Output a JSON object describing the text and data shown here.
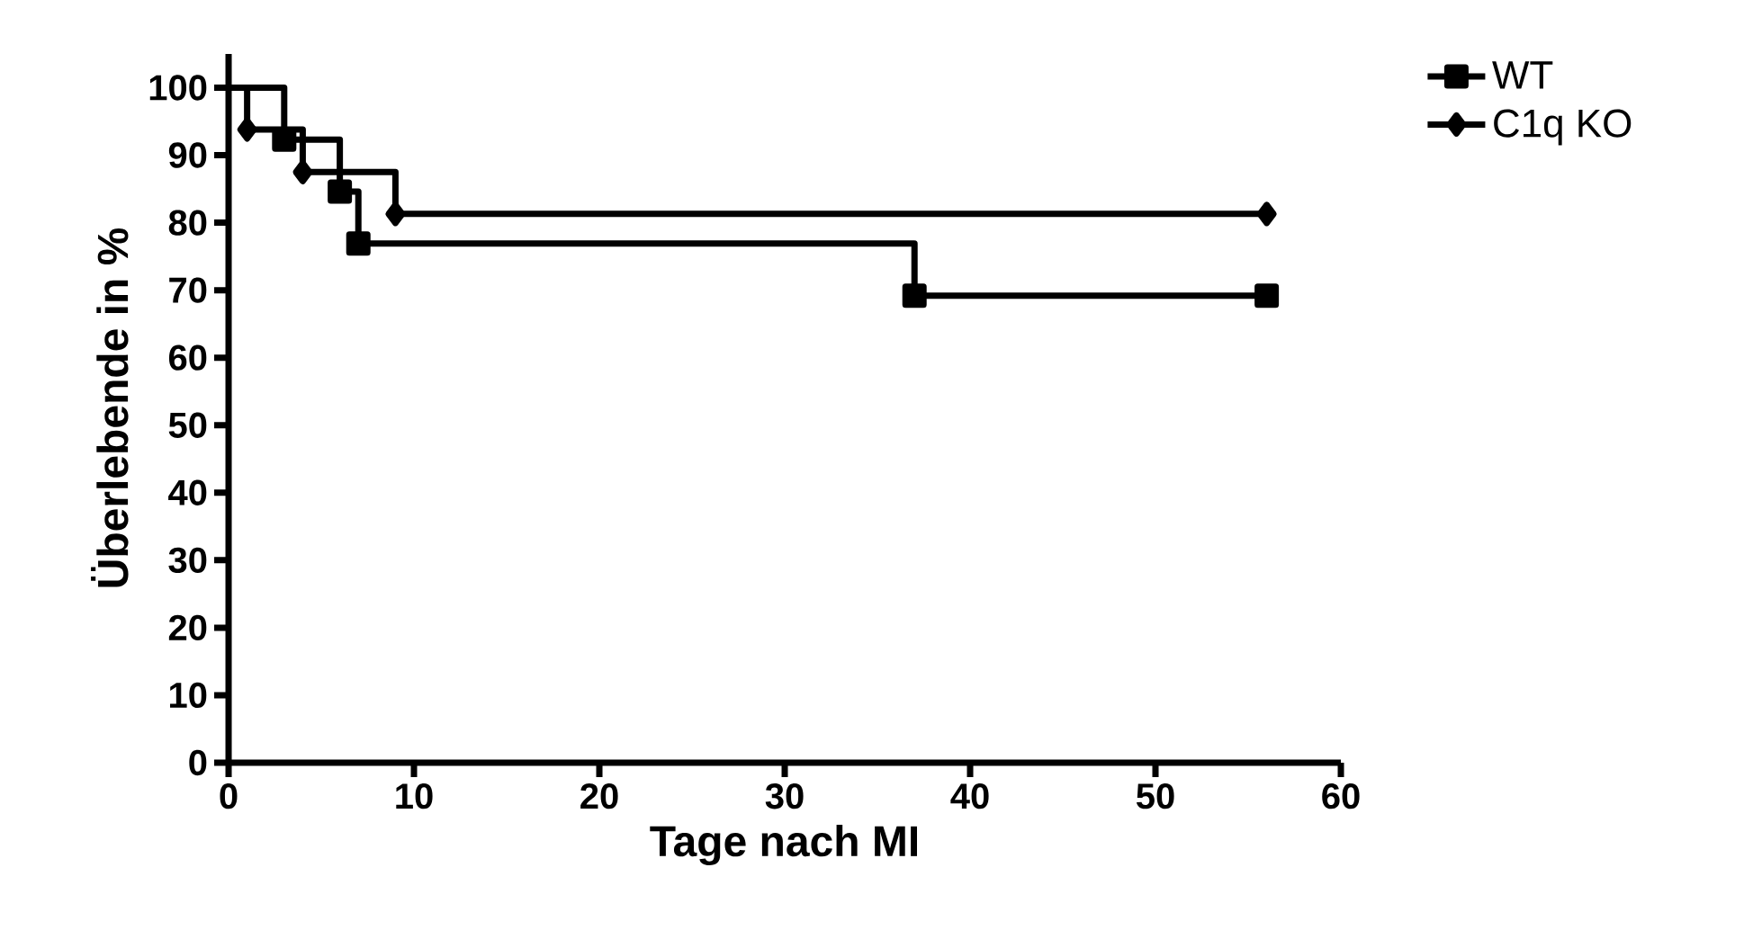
{
  "chart_data": {
    "type": "step",
    "xlabel": "Tage nach MI",
    "ylabel": "Überlebende in %",
    "series": [
      {
        "name": "WT",
        "color": "#000000",
        "marker": "square",
        "x": [
          0,
          3,
          6,
          7,
          37,
          56
        ],
        "values": [
          100,
          92.3,
          84.6,
          76.9,
          69.2,
          69.2
        ]
      },
      {
        "name": "C1q KO",
        "color": "#000000",
        "marker": "diamond",
        "x": [
          0,
          1,
          4,
          9,
          56
        ],
        "values": [
          100,
          93.8,
          87.5,
          81.3,
          81.3
        ]
      }
    ],
    "xlim": [
      0,
      60
    ],
    "xticks": [
      0,
      10,
      20,
      30,
      40,
      50,
      60
    ],
    "ylim": [
      0,
      105
    ],
    "yticks": [
      0,
      10,
      20,
      30,
      40,
      50,
      60,
      70,
      80,
      90,
      100
    ],
    "grid": false,
    "legend": "top right",
    "line_style": "solid"
  }
}
